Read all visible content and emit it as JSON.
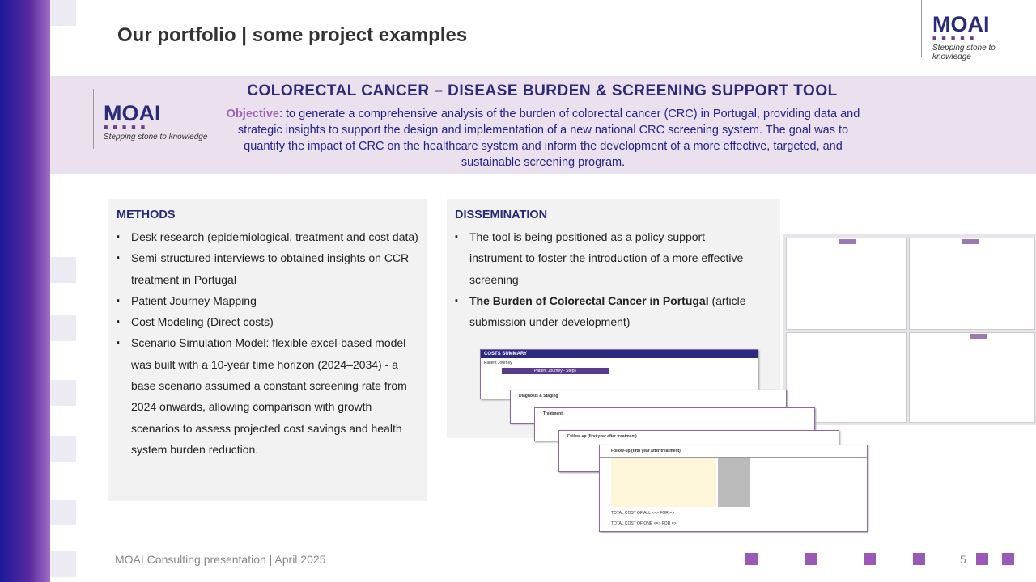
{
  "header": {
    "title": "Our portfolio | some project examples"
  },
  "logo": {
    "name": "MOAI",
    "tagline": "Stepping stone to knowledge"
  },
  "banner": {
    "title": "COLORECTAL CANCER – DISEASE BURDEN & SCREENING SUPPORT TOOL",
    "objective_label": "Objective",
    "objective_text": ": to generate a comprehensive analysis of the burden of colorectal cancer (CRC) in Portugal, providing data and strategic insights to support the design and implementation of a new national CRC screening system. The goal was to quantify the impact of CRC on the healthcare system and inform the development of a more effective, targeted, and sustainable screening program."
  },
  "methods": {
    "heading": "METHODS",
    "items": [
      "Desk research (epidemiological, treatment and cost data)",
      "Semi-structured interviews to obtained insights on CCR treatment in Portugal",
      "Patient Journey Mapping",
      "Cost Modeling  (Direct costs)",
      "Scenario Simulation Model: flexible excel-based model was built with a 10-year time horizon (2024–2034) - a base scenario assumed a constant screening rate from 2024 onwards, allowing comparison with growth scenarios to assess projected cost savings and health system burden reduction."
    ]
  },
  "dissemination": {
    "heading": "DISSEMINATION",
    "items": [
      {
        "text": "The tool is being positioned as a policy support instrument to foster the introduction of a more effective screening"
      },
      {
        "bold": "The Burden of Colorectal Cancer in Portugal",
        "text": " (article submission under development)"
      }
    ]
  },
  "spreadsheet": {
    "title": "COSTS SUMMARY",
    "subtitle": "Patient Journey",
    "column": "Patient Journey - Steps",
    "rows": [
      "Diagnosis & Staging",
      "Treatment",
      "Follow-up (first year after treatment)",
      "Follow-up (fifth year after treatment)"
    ],
    "totals": [
      "TOTAL COST OF ALL <=> FOR =>",
      "TOTAL COST OF ONE <=> FOR =>"
    ]
  },
  "footer": {
    "text": "MOAI Consulting presentation | April 2025",
    "page": "5"
  }
}
